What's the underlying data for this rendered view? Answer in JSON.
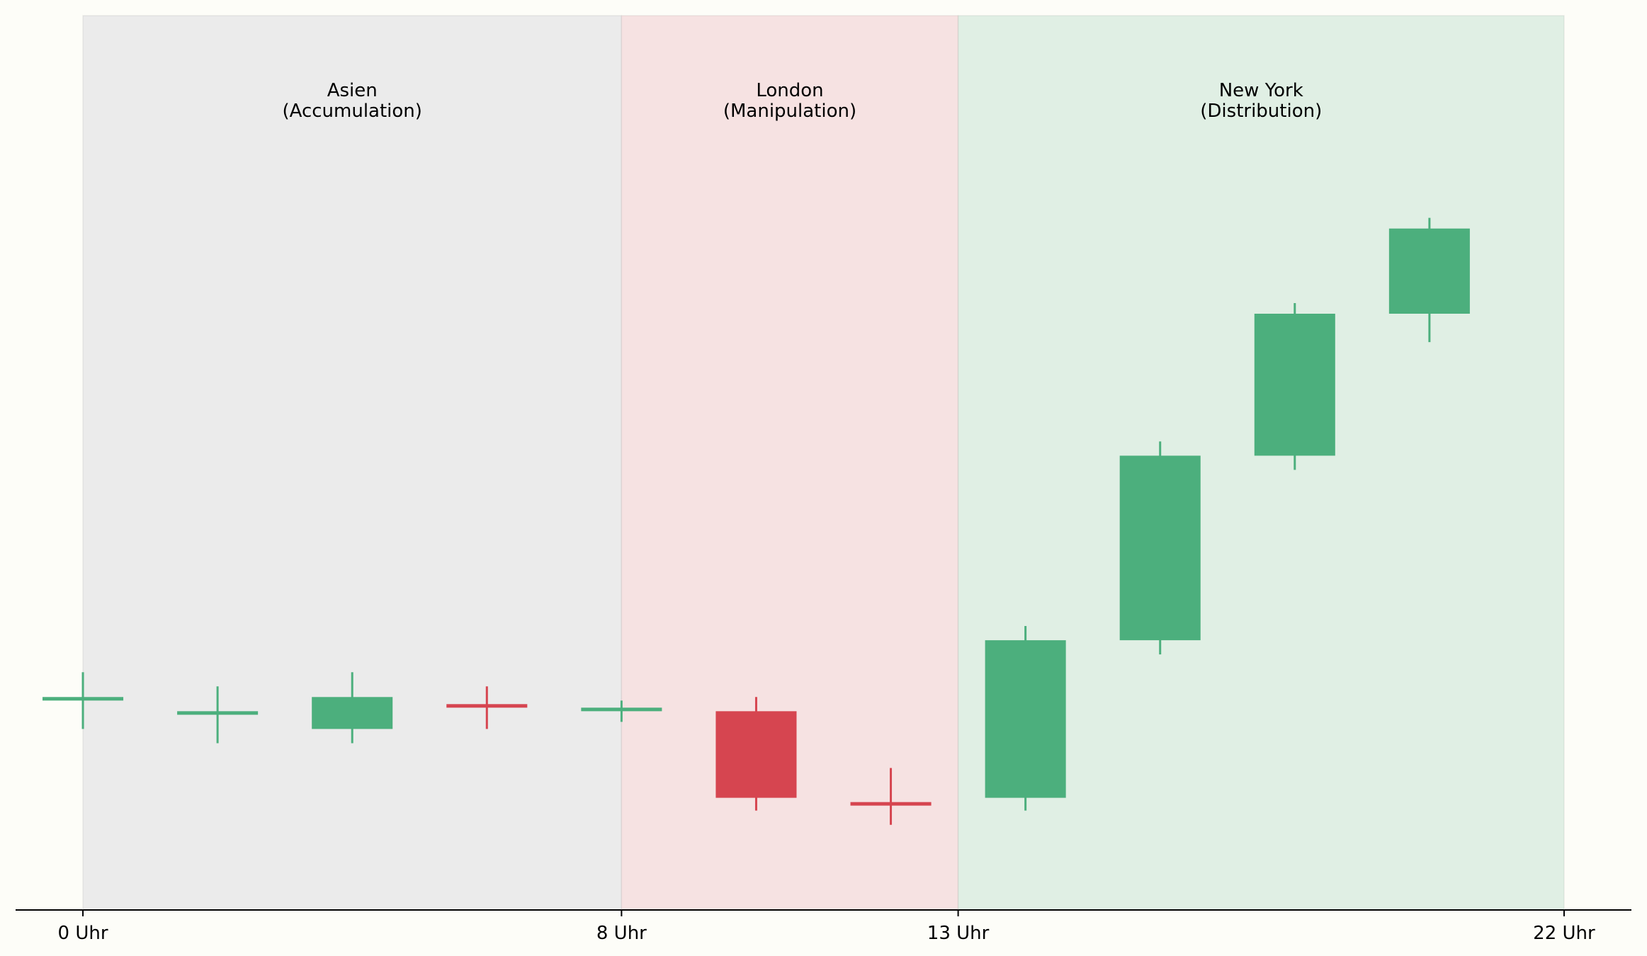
{
  "chart_data": {
    "type": "candlestick",
    "title": "",
    "xlabel": "",
    "ylabel": "",
    "xlim": [
      -1,
      23
    ],
    "ylim": [
      -0.6,
      12
    ],
    "x_ticks": [
      {
        "value": 0,
        "label": "0 Uhr"
      },
      {
        "value": 8,
        "label": "8 Uhr"
      },
      {
        "value": 13,
        "label": "13 Uhr"
      },
      {
        "value": 22,
        "label": "22 Uhr"
      }
    ],
    "sessions": [
      {
        "name": "Asien",
        "phase": "(Accumulation)",
        "start": 0,
        "end": 8,
        "color": "#ebebeb"
      },
      {
        "name": "London",
        "phase": "(Manipulation)",
        "start": 8,
        "end": 13,
        "color": "#f6e2e2"
      },
      {
        "name": "New York",
        "phase": "(Distribution)",
        "start": 13,
        "end": 22,
        "color": "#e0efe4"
      }
    ],
    "colors": {
      "up": "#4caf7d",
      "down": "#d64550"
    },
    "candles": [
      {
        "x": 0,
        "open": 2.35,
        "high": 2.75,
        "low": 1.95,
        "close": 2.4
      },
      {
        "x": 2,
        "open": 2.15,
        "high": 2.55,
        "low": 1.75,
        "close": 2.2
      },
      {
        "x": 4,
        "open": 1.95,
        "high": 2.75,
        "low": 1.75,
        "close": 2.4
      },
      {
        "x": 6,
        "open": 2.3,
        "high": 2.55,
        "low": 1.95,
        "close": 2.25
      },
      {
        "x": 8,
        "open": 2.2,
        "high": 2.35,
        "low": 2.05,
        "close": 2.25
      },
      {
        "x": 10,
        "open": 2.2,
        "high": 2.4,
        "low": 0.8,
        "close": 0.98
      },
      {
        "x": 12,
        "open": 0.92,
        "high": 1.4,
        "low": 0.6,
        "close": 0.88
      },
      {
        "x": 14,
        "open": 0.98,
        "high": 3.4,
        "low": 0.8,
        "close": 3.2
      },
      {
        "x": 16,
        "open": 3.2,
        "high": 6.0,
        "low": 3.0,
        "close": 5.8
      },
      {
        "x": 18,
        "open": 5.8,
        "high": 7.95,
        "low": 5.6,
        "close": 7.8
      },
      {
        "x": 20,
        "open": 7.8,
        "high": 9.15,
        "low": 7.4,
        "close": 9.0
      }
    ]
  }
}
